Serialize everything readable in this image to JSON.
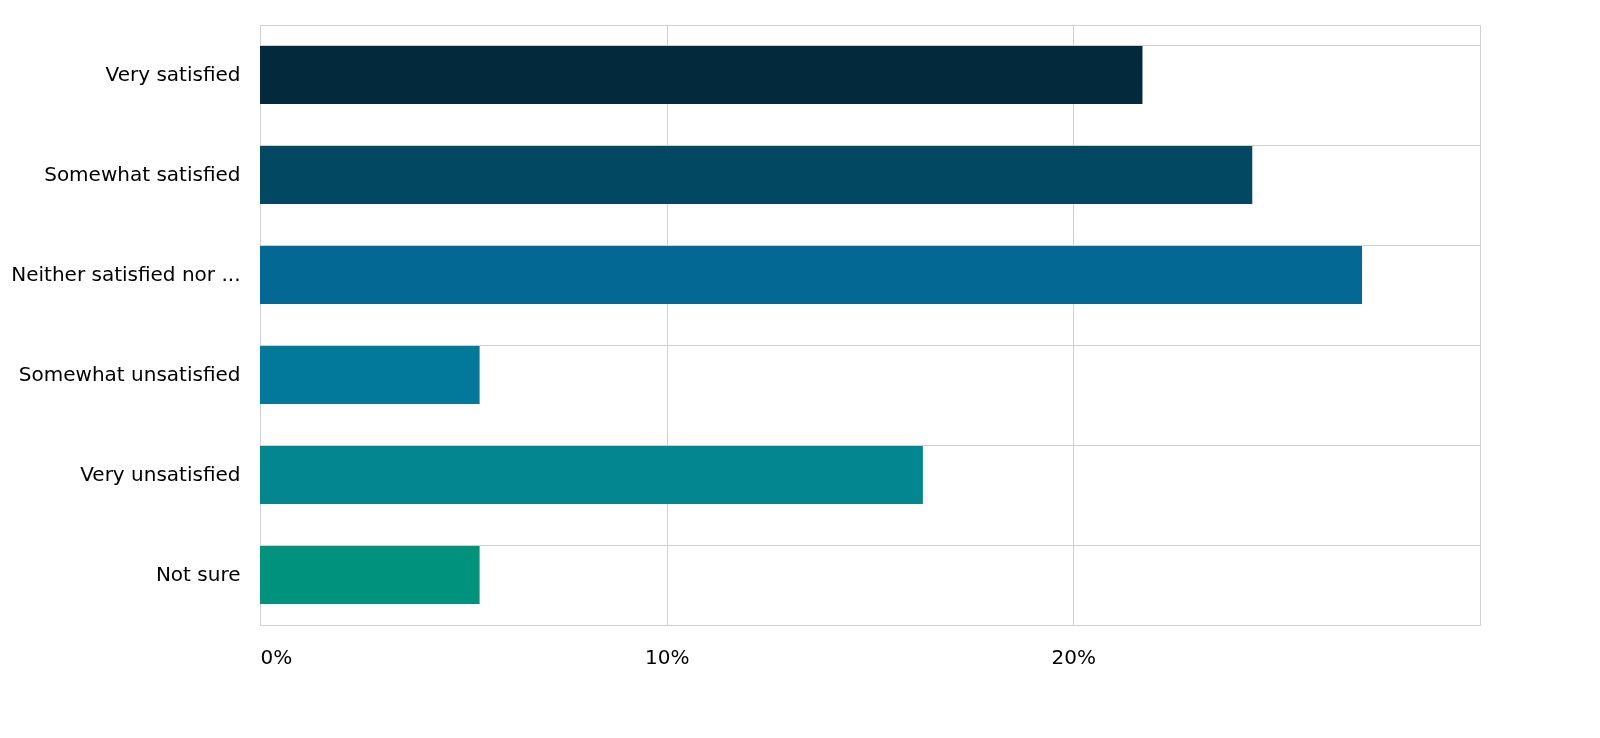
{
  "chart_data": {
    "type": "bar",
    "orientation": "horizontal",
    "categories": [
      "Very satisfied",
      "Somewhat satisfied",
      "Neither satisfied nor ...",
      "Somewhat unsatisfied",
      "Very unsatisfied",
      "Not sure"
    ],
    "values": [
      21.7,
      24.4,
      27.1,
      5.4,
      16.3,
      5.4
    ],
    "colors": [
      "#03293d",
      "#034863",
      "#036894",
      "#02789a",
      "#03868f",
      "#00927d"
    ],
    "xlim": [
      0,
      30
    ],
    "xticks": [
      {
        "value": 0,
        "label": "0%"
      },
      {
        "value": 10,
        "label": "10%"
      },
      {
        "value": 20,
        "label": "20%"
      },
      {
        "value": 30,
        "label": null
      }
    ],
    "grid": true
  }
}
